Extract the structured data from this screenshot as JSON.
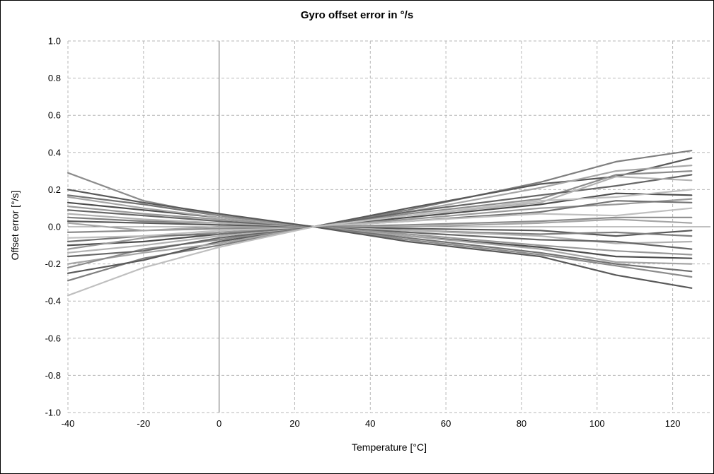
{
  "chart_data": {
    "type": "line",
    "title": "Gyro offset error in °/s",
    "xlabel": "Temperature [°C]",
    "ylabel": "Offset error [°/s]",
    "xlim": [
      -40,
      130
    ],
    "ylim": [
      -1.0,
      1.0
    ],
    "xticks": [
      -40,
      -20,
      0,
      20,
      40,
      60,
      80,
      100,
      120
    ],
    "ytick_labels": [
      "1.0",
      "0.8",
      "0.6",
      "0.4",
      "0.2",
      "0.0",
      "-0.2",
      "-0.4",
      "-0.6",
      "-0.8",
      "-1.0"
    ],
    "grid": true,
    "legend": false,
    "grid_color": "#b7b7b7",
    "axis_color": "#808080",
    "x": [
      -40,
      -20,
      0,
      25,
      50,
      85,
      105,
      125
    ],
    "series": [
      {
        "color": "#7f7f7f",
        "values": [
          -0.29,
          -0.17,
          -0.1,
          0,
          0.09,
          0.24,
          0.35,
          0.41
        ]
      },
      {
        "color": "#595959",
        "values": [
          -0.25,
          -0.18,
          -0.08,
          0,
          0.1,
          0.23,
          0.27,
          0.37
        ]
      },
      {
        "color": "#a6a6a6",
        "values": [
          -0.2,
          -0.14,
          -0.09,
          0,
          0.08,
          0.21,
          0.3,
          0.33
        ]
      },
      {
        "color": "#8c8c8c",
        "values": [
          -0.22,
          -0.12,
          -0.07,
          0,
          0.07,
          0.15,
          0.28,
          0.3
        ]
      },
      {
        "color": "#666666",
        "values": [
          -0.16,
          -0.13,
          -0.06,
          0,
          0.08,
          0.17,
          0.22,
          0.28
        ]
      },
      {
        "color": "#b2b2b2",
        "values": [
          -0.14,
          -0.1,
          -0.05,
          0,
          0.06,
          0.13,
          0.27,
          0.25
        ]
      },
      {
        "color": "#4d4d4d",
        "values": [
          -0.1,
          -0.08,
          -0.04,
          0,
          0.05,
          0.12,
          0.18,
          0.17
        ]
      },
      {
        "color": "#999999",
        "values": [
          -0.12,
          -0.06,
          -0.03,
          0,
          0.04,
          0.1,
          0.12,
          0.15
        ]
      },
      {
        "color": "#737373",
        "values": [
          -0.08,
          -0.05,
          -0.04,
          0,
          0.03,
          0.08,
          0.14,
          0.13
        ]
      },
      {
        "color": "#bfbfbf",
        "values": [
          -0.06,
          -0.05,
          -0.02,
          0,
          0.03,
          0.07,
          0.06,
          0.1
        ]
      },
      {
        "color": "#8c8c8c",
        "values": [
          -0.03,
          -0.02,
          -0.01,
          0,
          0.01,
          0.03,
          0.05,
          0.05
        ]
      },
      {
        "color": "#a6a6a6",
        "values": [
          0.02,
          -0.02,
          0.0,
          0,
          0.0,
          0.02,
          0.04,
          0.02
        ]
      },
      {
        "color": "#595959",
        "values": [
          0.03,
          0.02,
          0.01,
          0,
          -0.01,
          -0.02,
          -0.05,
          -0.02
        ]
      },
      {
        "color": "#7f7f7f",
        "values": [
          0.05,
          0.03,
          0.02,
          0,
          -0.02,
          -0.04,
          -0.03,
          -0.05
        ]
      },
      {
        "color": "#b2b2b2",
        "values": [
          0.07,
          0.04,
          0.02,
          0,
          -0.02,
          -0.05,
          -0.09,
          -0.08
        ]
      },
      {
        "color": "#666666",
        "values": [
          0.09,
          0.06,
          0.03,
          0,
          -0.03,
          -0.07,
          -0.08,
          -0.12
        ]
      },
      {
        "color": "#999999",
        "values": [
          0.11,
          0.07,
          0.04,
          0,
          -0.04,
          -0.1,
          -0.13,
          -0.15
        ]
      },
      {
        "color": "#4d4d4d",
        "values": [
          0.13,
          0.09,
          0.05,
          0,
          -0.05,
          -0.11,
          -0.16,
          -0.17
        ]
      },
      {
        "color": "#a6a6a6",
        "values": [
          0.16,
          0.1,
          0.05,
          0,
          -0.05,
          -0.12,
          -0.19,
          -0.2
        ]
      },
      {
        "color": "#737373",
        "values": [
          0.17,
          0.12,
          0.06,
          0,
          -0.06,
          -0.14,
          -0.2,
          -0.24
        ]
      },
      {
        "color": "#8c8c8c",
        "values": [
          0.29,
          0.14,
          0.06,
          0,
          -0.07,
          -0.15,
          -0.21,
          -0.27
        ]
      },
      {
        "color": "#595959",
        "values": [
          0.2,
          0.13,
          0.07,
          0,
          -0.08,
          -0.16,
          -0.26,
          -0.33
        ]
      },
      {
        "color": "#bfbfbf",
        "values": [
          -0.37,
          -0.22,
          -0.11,
          0,
          0.06,
          0.14,
          0.16,
          0.2
        ]
      }
    ]
  }
}
